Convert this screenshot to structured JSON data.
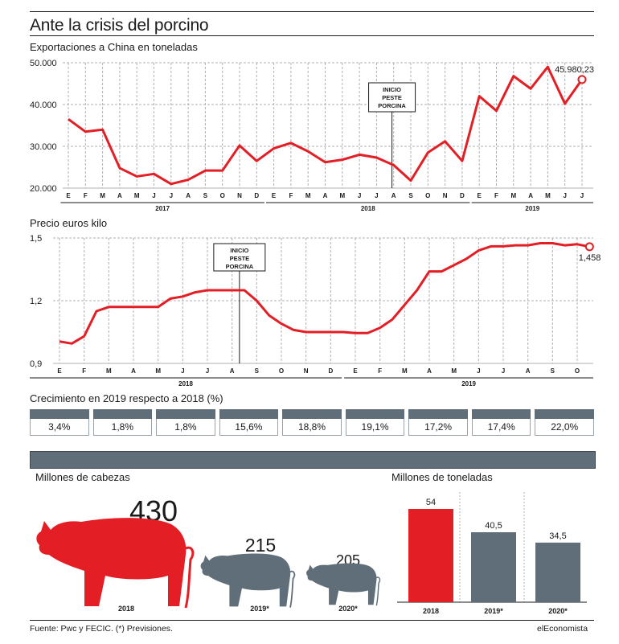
{
  "title": "Ante la crisis del porcino",
  "colors": {
    "red": "#e31e24",
    "slate": "#5f6e78",
    "grid": "#b0b0b0",
    "text": "#1a1a1a"
  },
  "icons": {
    "pig_outline": "pig-outline-icon",
    "pig_red": "pig-icon",
    "pig_gray": "pig-icon"
  },
  "exports": {
    "subtitle": "Exportaciones a China en toneladas",
    "annotation": "INICIO PESTE PORCINA",
    "last_label": "45.980,23",
    "y_ticks": [
      "50.000",
      "40.000",
      "30.000",
      "20.000"
    ],
    "months": [
      "E",
      "F",
      "M",
      "A",
      "M",
      "J",
      "J",
      "A",
      "S",
      "O",
      "N",
      "D",
      "E",
      "F",
      "M",
      "A",
      "M",
      "J",
      "J",
      "A",
      "S",
      "O",
      "N",
      "D",
      "E",
      "F",
      "M",
      "A",
      "M",
      "J",
      "J"
    ],
    "years": [
      "2017",
      "2018",
      "2019"
    ]
  },
  "price": {
    "subtitle": "Precio euros kilo",
    "annotation": "INICIO PESTE PORCINA",
    "last_label": "1,458",
    "y_ticks": [
      "1,5",
      "1,2",
      "0,9"
    ],
    "months": [
      "E",
      "F",
      "M",
      "A",
      "M",
      "J",
      "J",
      "A",
      "S",
      "O",
      "N",
      "D",
      "E",
      "F",
      "M",
      "A",
      "M",
      "J",
      "J",
      "A",
      "S",
      "O"
    ],
    "years": [
      "2018",
      "2019"
    ]
  },
  "growth": {
    "subtitle": "Crecimiento en 2019 respecto a 2018 (%)",
    "values": [
      "3,4%",
      "1,8%",
      "1,8%",
      "15,6%",
      "18,8%",
      "19,1%",
      "17,2%",
      "17,4%",
      "22,0%"
    ]
  },
  "heads": {
    "subtitle": "Millones de cabezas",
    "items": [
      {
        "value": "430",
        "year": "2018"
      },
      {
        "value": "215",
        "year": "2019*"
      },
      {
        "value": "205",
        "year": "2020*"
      }
    ]
  },
  "tons": {
    "subtitle": "Millones de toneladas",
    "bars": [
      {
        "label": "54",
        "year": "2018"
      },
      {
        "label": "40,5",
        "year": "2019*"
      },
      {
        "label": "34,5",
        "year": "2020*"
      }
    ]
  },
  "footer": {
    "source": "Fuente: Pwc y FECIC. (*) Previsiones.",
    "brand": "elEconomista"
  },
  "chart_data": [
    {
      "type": "line",
      "title": "Exportaciones a China en toneladas",
      "x": [
        "2017-01",
        "2017-02",
        "2017-03",
        "2017-04",
        "2017-05",
        "2017-06",
        "2017-07",
        "2017-08",
        "2017-09",
        "2017-10",
        "2017-11",
        "2017-12",
        "2018-01",
        "2018-02",
        "2018-03",
        "2018-04",
        "2018-05",
        "2018-06",
        "2018-07",
        "2018-08",
        "2018-09",
        "2018-10",
        "2018-11",
        "2018-12",
        "2019-01",
        "2019-02",
        "2019-03",
        "2019-04",
        "2019-05",
        "2019-06",
        "2019-07"
      ],
      "series": [
        {
          "values": [
            36500,
            33500,
            34000,
            24800,
            22800,
            23400,
            21000,
            22000,
            24200,
            24200,
            30200,
            26500,
            29500,
            30800,
            28800,
            26200,
            26800,
            28000,
            27300,
            25500,
            21800,
            28500,
            31200,
            26500,
            42000,
            38500,
            46800,
            43800,
            49000,
            40200,
            45980.23
          ]
        }
      ],
      "ylim": [
        20000,
        50000
      ],
      "annotations": [
        {
          "x": "2018-08",
          "text": "INICIO PESTE PORCINA"
        }
      ]
    },
    {
      "type": "line",
      "title": "Precio euros kilo",
      "x": [
        "2018-01-01",
        "2018-01-15",
        "2018-02-01",
        "2018-02-15",
        "2018-03-01",
        "2018-03-15",
        "2018-04-01",
        "2018-04-15",
        "2018-05-01",
        "2018-05-15",
        "2018-06-01",
        "2018-06-15",
        "2018-07-01",
        "2018-07-15",
        "2018-08-01",
        "2018-08-15",
        "2018-09-01",
        "2018-09-15",
        "2018-10-01",
        "2018-10-15",
        "2018-11-01",
        "2018-11-15",
        "2018-12-01",
        "2018-12-15",
        "2019-01-01",
        "2019-01-15",
        "2019-02-01",
        "2019-02-15",
        "2019-03-01",
        "2019-03-15",
        "2019-04-01",
        "2019-04-15",
        "2019-05-01",
        "2019-05-15",
        "2019-06-01",
        "2019-06-15",
        "2019-07-01",
        "2019-07-15",
        "2019-08-01",
        "2019-08-15",
        "2019-09-01",
        "2019-09-15",
        "2019-10-01",
        "2019-10-15"
      ],
      "series": [
        {
          "values": [
            1.005,
            0.995,
            1.03,
            1.15,
            1.17,
            1.17,
            1.17,
            1.17,
            1.17,
            1.21,
            1.22,
            1.24,
            1.25,
            1.25,
            1.25,
            1.25,
            1.2,
            1.13,
            1.09,
            1.06,
            1.05,
            1.05,
            1.05,
            1.05,
            1.045,
            1.045,
            1.07,
            1.11,
            1.18,
            1.25,
            1.34,
            1.34,
            1.37,
            1.4,
            1.44,
            1.46,
            1.46,
            1.465,
            1.465,
            1.475,
            1.475,
            1.465,
            1.47,
            1.458
          ]
        }
      ],
      "ylim": [
        0.9,
        1.5
      ],
      "annotations": [
        {
          "x": "2018-08",
          "text": "INICIO PESTE PORCINA"
        }
      ]
    },
    {
      "type": "table",
      "title": "Crecimiento en 2019 respecto a 2018 (%)",
      "values": [
        3.4,
        1.8,
        1.8,
        15.6,
        18.8,
        19.1,
        17.2,
        17.4,
        22.0
      ]
    },
    {
      "type": "bar",
      "title": "Millones de cabezas",
      "categories": [
        "2018",
        "2019*",
        "2020*"
      ],
      "values": [
        430,
        215,
        205
      ]
    },
    {
      "type": "bar",
      "title": "Millones de toneladas",
      "categories": [
        "2018",
        "2019*",
        "2020*"
      ],
      "values": [
        54,
        40.5,
        34.5
      ],
      "colors": [
        "#e31e24",
        "#5f6e78",
        "#5f6e78"
      ]
    }
  ]
}
